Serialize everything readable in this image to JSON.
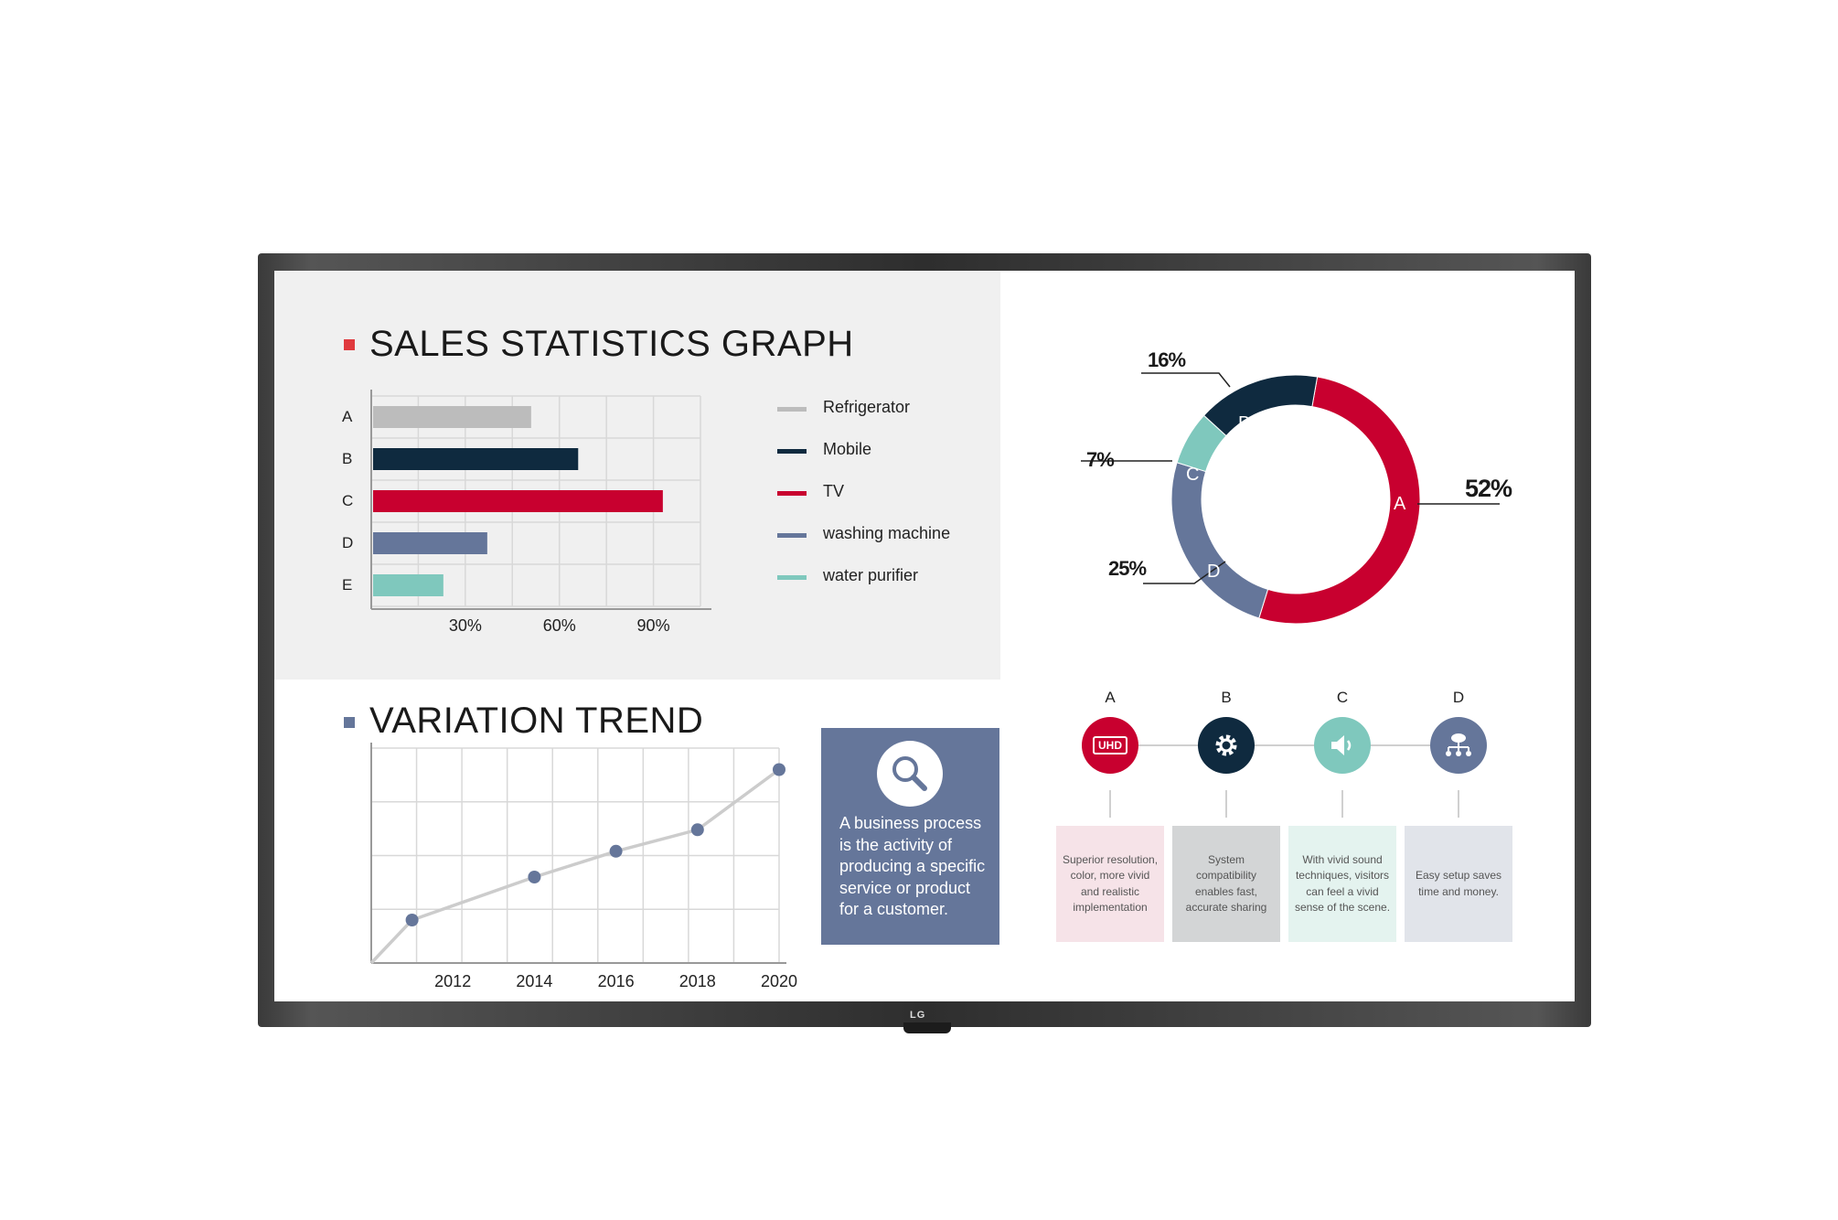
{
  "brand": {
    "logo_text": "LG"
  },
  "colors": {
    "grey": "#bcbcbc",
    "navy": "#0f2a3f",
    "red": "#c8002f",
    "slate": "#65769a",
    "teal": "#7fc8bd"
  },
  "sales": {
    "title": "SALES STATISTICS GRAPH",
    "square_color": "#e03a3e",
    "legend": [
      "Refrigerator",
      "Mobile",
      "TV",
      "washing machine",
      "water purifier"
    ]
  },
  "trend": {
    "title": "VARIATION TREND",
    "square_color": "#65769a",
    "quote": "A business process is the activity of producing a specific service or product for a customer."
  },
  "steps": [
    {
      "letter": "A",
      "icon": "uhd-icon",
      "icon_text": "UHD",
      "color": "#c8002f",
      "box_color": "#f6e3e8",
      "text": "Superior resolution, color, more vivid and realistic implementation"
    },
    {
      "letter": "B",
      "icon": "gear-icon",
      "color": "#0f2a3f",
      "box_color": "#d3d5d6",
      "text": "System compatibility enables fast, accurate sharing"
    },
    {
      "letter": "C",
      "icon": "speaker-icon",
      "color": "#7fc8bd",
      "box_color": "#e4f3ef",
      "text": "With vivid sound techniques, visitors can feel a vivid sense of the scene."
    },
    {
      "letter": "D",
      "icon": "network-icon",
      "color": "#65769a",
      "box_color": "#e1e4ea",
      "text": "Easy setup saves time and money."
    }
  ],
  "chart_data": [
    {
      "type": "bar",
      "orientation": "horizontal",
      "categories": [
        "A",
        "B",
        "C",
        "D",
        "E"
      ],
      "values": [
        51,
        66,
        93,
        37,
        23
      ],
      "series_names": [
        "Refrigerator",
        "Mobile",
        "TV",
        "washing machine",
        "water purifier"
      ],
      "bar_colors": [
        "#bcbcbc",
        "#0f2a3f",
        "#c8002f",
        "#65769a",
        "#7fc8bd"
      ],
      "xticks": [
        "30%",
        "60%",
        "90%"
      ],
      "xlim": [
        0,
        105
      ],
      "grid": true,
      "legend": "right"
    },
    {
      "type": "pie",
      "donut": true,
      "slices": [
        {
          "label": "A",
          "value": 52,
          "pct_label": "52%",
          "color": "#c8002f"
        },
        {
          "label": "D",
          "value": 25,
          "pct_label": "25%",
          "color": "#65769a"
        },
        {
          "label": "C",
          "value": 7,
          "pct_label": "7%",
          "color": "#7fc8bd"
        },
        {
          "label": "B",
          "value": 16,
          "pct_label": "16%",
          "color": "#0f2a3f"
        }
      ]
    },
    {
      "type": "line",
      "x": [
        2011,
        2014,
        2016,
        2018,
        2020
      ],
      "y": [
        1,
        2,
        2.6,
        3.1,
        4.5
      ],
      "xticks": [
        "2012",
        "2014",
        "2016",
        "2018",
        "2020"
      ],
      "xtick_positions": [
        2012,
        2014,
        2016,
        2018,
        2020
      ],
      "xlim": [
        2010,
        2020
      ],
      "ylim": [
        0,
        5
      ],
      "grid": true,
      "line_color": "#cccccc",
      "marker_color": "#65769a"
    }
  ]
}
